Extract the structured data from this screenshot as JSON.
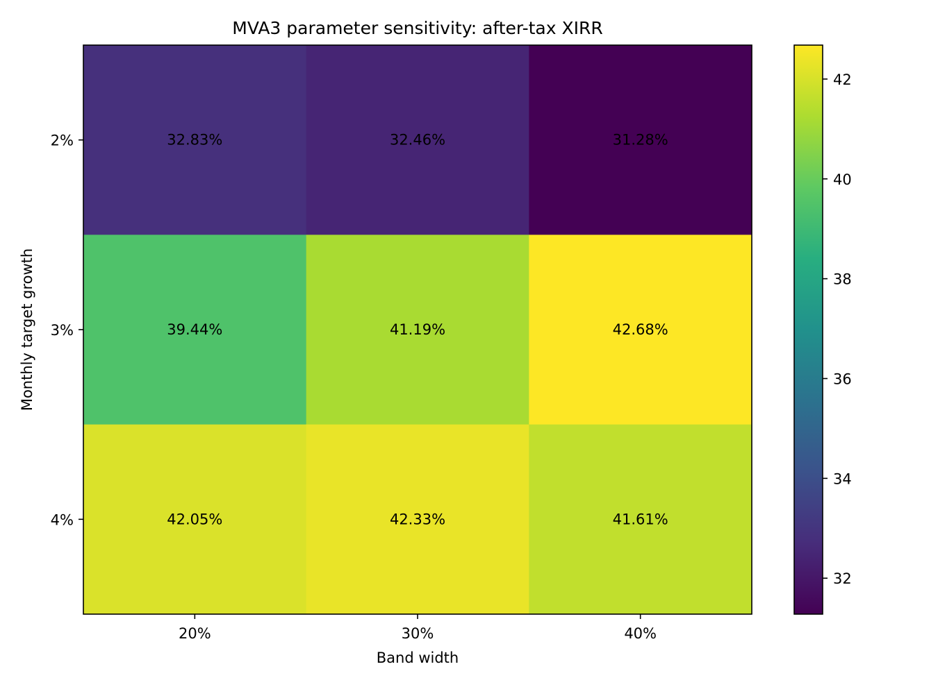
{
  "chart_data": {
    "type": "heatmap",
    "title": "MVA3 parameter sensitivity: after-tax XIRR",
    "xlabel": "Band width",
    "ylabel": "Monthly target growth",
    "x_categories": [
      "20%",
      "30%",
      "40%"
    ],
    "y_categories": [
      "2%",
      "3%",
      "4%"
    ],
    "values": [
      [
        32.83,
        32.46,
        31.28
      ],
      [
        39.44,
        41.19,
        42.68
      ],
      [
        42.05,
        42.33,
        41.61
      ]
    ],
    "cell_labels": [
      [
        "32.83%",
        "32.46%",
        "31.28%"
      ],
      [
        "39.44%",
        "41.19%",
        "42.68%"
      ],
      [
        "42.05%",
        "42.33%",
        "41.61%"
      ]
    ],
    "colormap": "viridis",
    "colorbar": {
      "range": [
        31.28,
        42.68
      ],
      "ticks": [
        32,
        34,
        36,
        38,
        40,
        42
      ],
      "tick_labels": [
        "32",
        "34",
        "36",
        "38",
        "40",
        "42"
      ]
    },
    "grid": false,
    "legend": "none"
  }
}
